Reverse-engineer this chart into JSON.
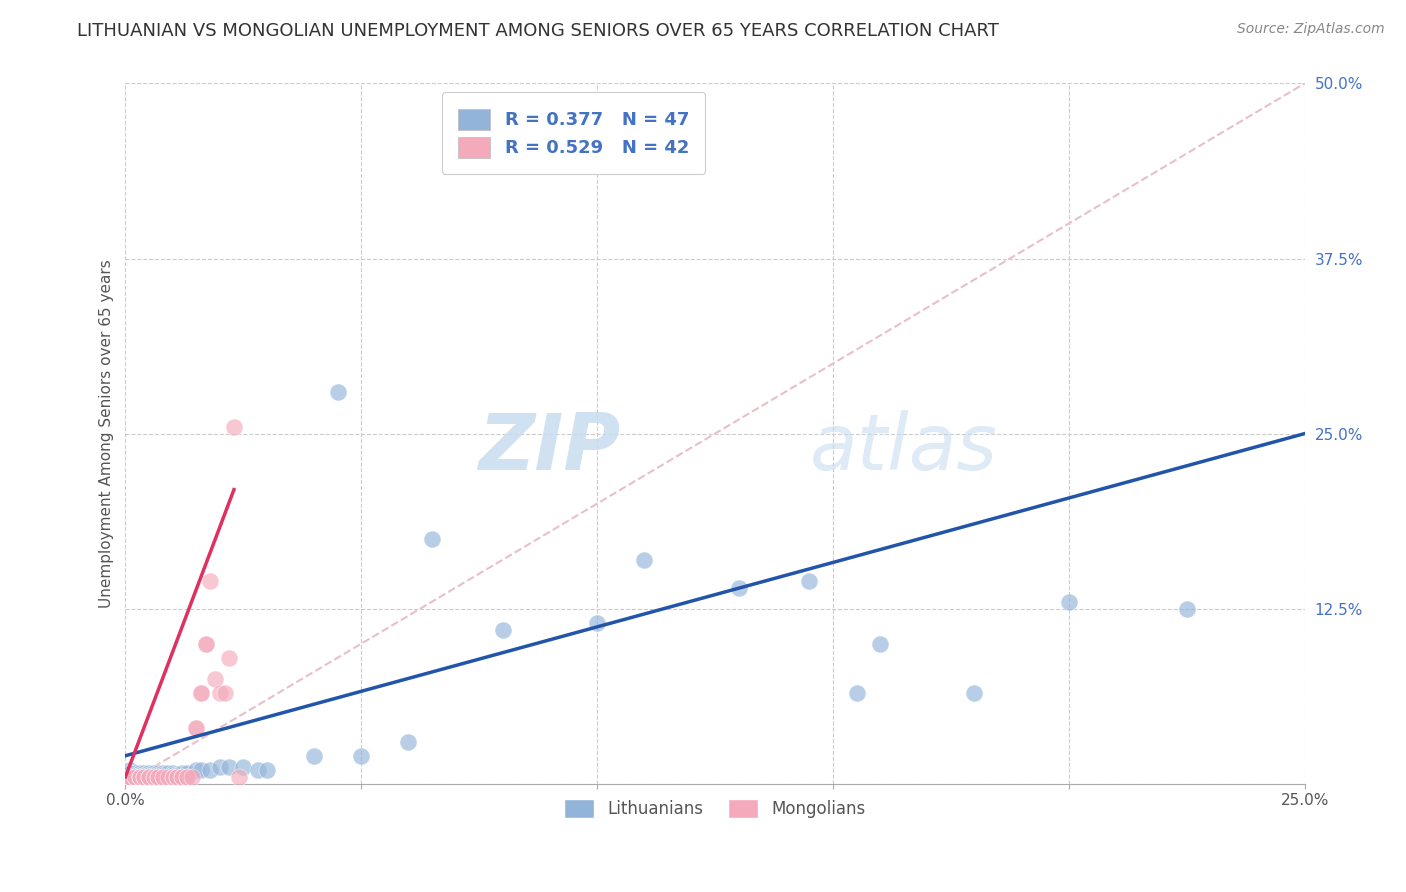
{
  "title": "LITHUANIAN VS MONGOLIAN UNEMPLOYMENT AMONG SENIORS OVER 65 YEARS CORRELATION CHART",
  "source": "Source: ZipAtlas.com",
  "ylabel": "Unemployment Among Seniors over 65 years",
  "xlim": [
    0.0,
    0.25
  ],
  "ylim": [
    0.0,
    0.5
  ],
  "xticks": [
    0.0,
    0.05,
    0.1,
    0.15,
    0.2,
    0.25
  ],
  "yticks": [
    0.0,
    0.125,
    0.25,
    0.375,
    0.5
  ],
  "xtick_labels": [
    "0.0%",
    "",
    "",
    "",
    "",
    "25.0%"
  ],
  "ytick_labels": [
    "",
    "12.5%",
    "25.0%",
    "37.5%",
    "50.0%"
  ],
  "legend1_R": "0.377",
  "legend1_N": "47",
  "legend2_R": "0.529",
  "legend2_N": "42",
  "blue_color": "#92B4D9",
  "pink_color": "#F4AABB",
  "blue_line_color": "#2255AA",
  "pink_line_color": "#E03060",
  "blue_scatter": [
    [
      0.001,
      0.01
    ],
    [
      0.001,
      0.008
    ],
    [
      0.002,
      0.008
    ],
    [
      0.002,
      0.006
    ],
    [
      0.003,
      0.008
    ],
    [
      0.003,
      0.006
    ],
    [
      0.003,
      0.004
    ],
    [
      0.004,
      0.008
    ],
    [
      0.004,
      0.006
    ],
    [
      0.005,
      0.008
    ],
    [
      0.005,
      0.006
    ],
    [
      0.005,
      0.004
    ],
    [
      0.006,
      0.008
    ],
    [
      0.006,
      0.006
    ],
    [
      0.007,
      0.008
    ],
    [
      0.007,
      0.006
    ],
    [
      0.008,
      0.008
    ],
    [
      0.008,
      0.006
    ],
    [
      0.009,
      0.008
    ],
    [
      0.01,
      0.008
    ],
    [
      0.01,
      0.006
    ],
    [
      0.011,
      0.006
    ],
    [
      0.012,
      0.008
    ],
    [
      0.013,
      0.008
    ],
    [
      0.015,
      0.01
    ],
    [
      0.016,
      0.01
    ],
    [
      0.018,
      0.01
    ],
    [
      0.02,
      0.012
    ],
    [
      0.022,
      0.012
    ],
    [
      0.025,
      0.012
    ],
    [
      0.028,
      0.01
    ],
    [
      0.03,
      0.01
    ],
    [
      0.04,
      0.02
    ],
    [
      0.045,
      0.28
    ],
    [
      0.05,
      0.02
    ],
    [
      0.06,
      0.03
    ],
    [
      0.065,
      0.175
    ],
    [
      0.08,
      0.11
    ],
    [
      0.1,
      0.115
    ],
    [
      0.11,
      0.16
    ],
    [
      0.13,
      0.14
    ],
    [
      0.145,
      0.145
    ],
    [
      0.155,
      0.065
    ],
    [
      0.16,
      0.1
    ],
    [
      0.18,
      0.065
    ],
    [
      0.2,
      0.13
    ],
    [
      0.225,
      0.125
    ]
  ],
  "pink_scatter": [
    [
      0.001,
      0.005
    ],
    [
      0.001,
      0.005
    ],
    [
      0.001,
      0.005
    ],
    [
      0.002,
      0.005
    ],
    [
      0.002,
      0.005
    ],
    [
      0.003,
      0.005
    ],
    [
      0.003,
      0.005
    ],
    [
      0.003,
      0.005
    ],
    [
      0.004,
      0.005
    ],
    [
      0.004,
      0.005
    ],
    [
      0.005,
      0.005
    ],
    [
      0.005,
      0.005
    ],
    [
      0.005,
      0.005
    ],
    [
      0.006,
      0.005
    ],
    [
      0.006,
      0.005
    ],
    [
      0.007,
      0.005
    ],
    [
      0.007,
      0.005
    ],
    [
      0.008,
      0.005
    ],
    [
      0.008,
      0.005
    ],
    [
      0.009,
      0.005
    ],
    [
      0.01,
      0.005
    ],
    [
      0.01,
      0.005
    ],
    [
      0.011,
      0.005
    ],
    [
      0.011,
      0.005
    ],
    [
      0.012,
      0.005
    ],
    [
      0.012,
      0.005
    ],
    [
      0.013,
      0.005
    ],
    [
      0.013,
      0.005
    ],
    [
      0.014,
      0.005
    ],
    [
      0.015,
      0.04
    ],
    [
      0.015,
      0.04
    ],
    [
      0.016,
      0.065
    ],
    [
      0.016,
      0.065
    ],
    [
      0.017,
      0.1
    ],
    [
      0.017,
      0.1
    ],
    [
      0.018,
      0.145
    ],
    [
      0.019,
      0.075
    ],
    [
      0.02,
      0.065
    ],
    [
      0.021,
      0.065
    ],
    [
      0.022,
      0.09
    ],
    [
      0.023,
      0.255
    ],
    [
      0.024,
      0.005
    ]
  ],
  "background_color": "#FFFFFF",
  "grid_color": "#CCCCCC",
  "title_fontsize": 13,
  "axis_label_fontsize": 11,
  "tick_fontsize": 11,
  "legend_fontsize": 13
}
